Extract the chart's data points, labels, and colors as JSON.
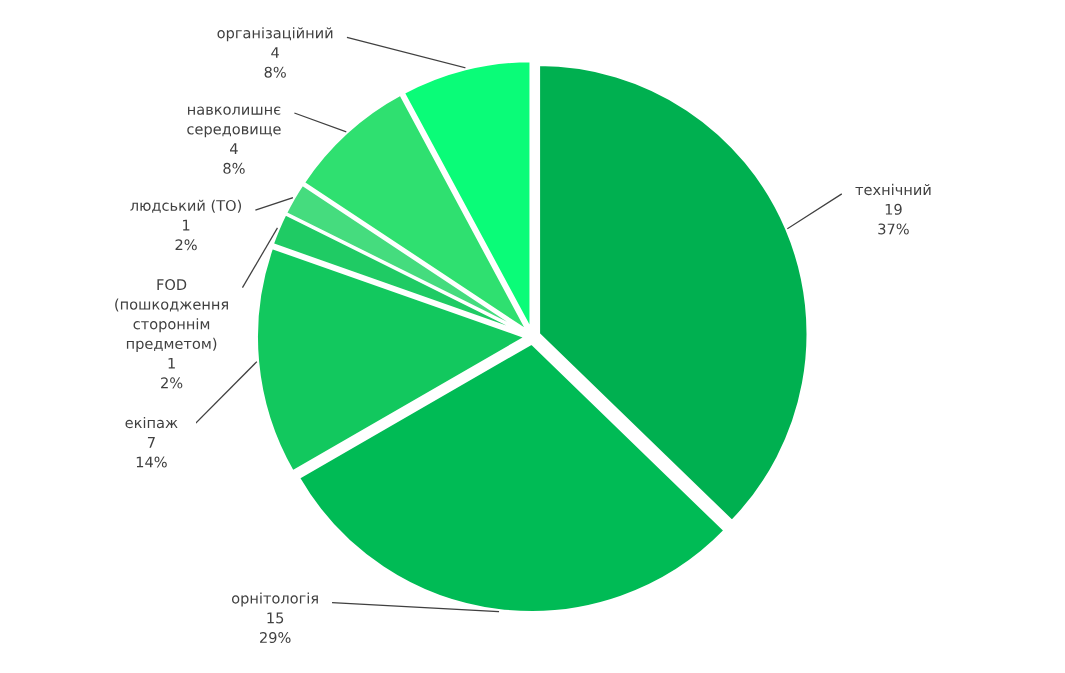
{
  "chart_data": {
    "type": "pie",
    "categories": [
      "технічний",
      "орнітологія",
      "екіпаж",
      "FOD\n(пошкодження\nстороннім\nпредметом)",
      "людський (ТО)",
      "навколишнє\nсередовище",
      "організаційний"
    ],
    "values": [
      19,
      15,
      7,
      1,
      1,
      4,
      4
    ],
    "value_labels": [
      "19\n37%",
      "15\n29%",
      "7\n14%",
      "1\n2%",
      "1\n2%",
      "4\n8%",
      "4\n8%"
    ],
    "colors": [
      "#00b050",
      "#00bb55",
      "#12c85e",
      "#1fcb64",
      "#45dc7e",
      "#2fe070",
      "#0afc78"
    ],
    "legend": false
  }
}
